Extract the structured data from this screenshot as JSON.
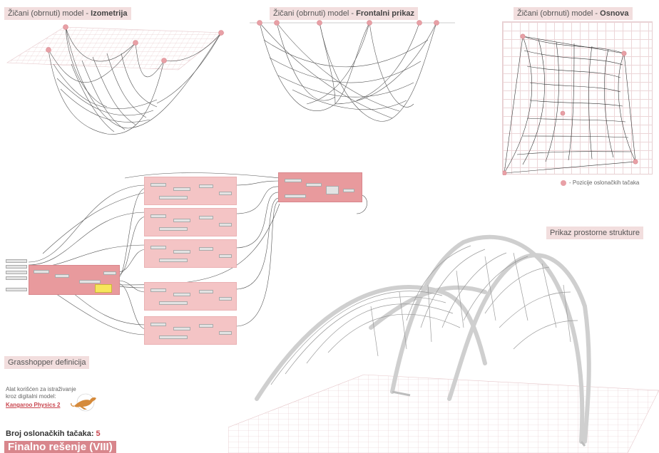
{
  "titles": {
    "iso_prefix": "Žičani (obrnuti) model - ",
    "iso_bold": "Izometrija",
    "front_prefix": "Žičani (obrnuti) model - ",
    "front_bold": "Frontalni prikaz",
    "plan_prefix": "Žičani  (obrnuti) model - ",
    "plan_bold": "Osnova"
  },
  "legend": {
    "text": "- Pozicije oslonačkih tačaka",
    "dot_color": "#e8a0a6"
  },
  "structure_label": "Prikaz prostorne strukture",
  "grasshopper_label": "Grasshopper definicija",
  "tool": {
    "line1": "Alat korišćen za istraživanje",
    "line2": "kroz digitalni model:",
    "link": "Kangaroo Physics 2"
  },
  "supports": {
    "label": "Broj oslonačkih tačaka: ",
    "value": "5"
  },
  "final_label": "Finalno rešenje (VIII)",
  "colors": {
    "accent": "#d8868c",
    "label_bg": "#f2dede",
    "support_point": "#e8a0a6",
    "link": "#c9464f"
  },
  "icons": {
    "support-point": "pink-dot",
    "kangaroo": "kangaroo-icon"
  }
}
